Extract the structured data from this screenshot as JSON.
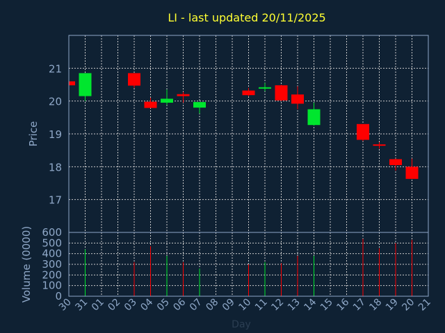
{
  "chart_data": {
    "type": "candlestick",
    "title": "LI - last updated 20/11/2025",
    "xlabel": "Day",
    "price_ylabel": "Price",
    "volume_ylabel": "Volume (0000)",
    "x_ticks": [
      "30",
      "31",
      "01",
      "02",
      "03",
      "04",
      "05",
      "06",
      "07",
      "08",
      "09",
      "10",
      "11",
      "12",
      "13",
      "14",
      "15",
      "16",
      "17",
      "18",
      "19",
      "20",
      "21"
    ],
    "price_ylim": [
      16.0,
      22.0
    ],
    "price_yticks": [
      17,
      18,
      19,
      20,
      21
    ],
    "volume_ylim": [
      0,
      600
    ],
    "volume_yticks": [
      0,
      100,
      200,
      300,
      400,
      500,
      600
    ],
    "grid": true,
    "colors": {
      "background": "#0f2133",
      "title": "#ffff33",
      "axis_text": "#8fa8c8",
      "grid": "#cccccc",
      "up": "#00e62e",
      "down": "#ff0000"
    },
    "candles": [
      {
        "day": "30",
        "open": 20.6,
        "high": 20.6,
        "low": 20.48,
        "close": 20.48,
        "volume": 0
      },
      {
        "day": "31",
        "open": 20.15,
        "high": 20.85,
        "low": 20.0,
        "close": 20.85,
        "volume": 440
      },
      {
        "day": "03",
        "open": 20.85,
        "high": 20.85,
        "low": 20.4,
        "close": 20.47,
        "volume": 320
      },
      {
        "day": "04",
        "open": 19.98,
        "high": 20.1,
        "low": 19.79,
        "close": 19.79,
        "volume": 470
      },
      {
        "day": "05",
        "open": 19.95,
        "high": 20.35,
        "low": 19.88,
        "close": 20.07,
        "volume": 380
      },
      {
        "day": "06",
        "open": 20.21,
        "high": 20.28,
        "low": 19.95,
        "close": 20.15,
        "volume": 320
      },
      {
        "day": "07",
        "open": 19.8,
        "high": 19.95,
        "low": 19.62,
        "close": 19.97,
        "volume": 260
      },
      {
        "day": "10",
        "open": 20.32,
        "high": 20.4,
        "low": 20.15,
        "close": 20.18,
        "volume": 300
      },
      {
        "day": "11",
        "open": 20.38,
        "high": 20.55,
        "low": 20.3,
        "close": 20.42,
        "volume": 320
      },
      {
        "day": "12",
        "open": 20.48,
        "high": 20.5,
        "low": 20.0,
        "close": 20.02,
        "volume": 310
      },
      {
        "day": "13",
        "open": 20.2,
        "high": 20.45,
        "low": 19.75,
        "close": 19.92,
        "volume": 380
      },
      {
        "day": "14",
        "open": 19.27,
        "high": 19.95,
        "low": 19.25,
        "close": 19.75,
        "volume": 380
      },
      {
        "day": "17",
        "open": 19.3,
        "high": 19.3,
        "low": 18.78,
        "close": 18.82,
        "volume": 540
      },
      {
        "day": "18",
        "open": 18.68,
        "high": 18.75,
        "low": 18.55,
        "close": 18.65,
        "volume": 450
      },
      {
        "day": "19",
        "open": 18.23,
        "high": 18.25,
        "low": 17.88,
        "close": 18.05,
        "volume": 500
      },
      {
        "day": "20",
        "open": 18.0,
        "high": 18.25,
        "low": 17.63,
        "close": 17.63,
        "volume": 530
      }
    ]
  }
}
